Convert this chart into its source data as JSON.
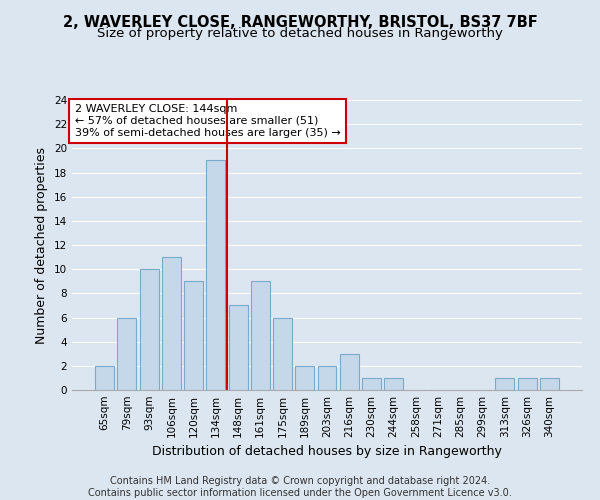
{
  "title_line1": "2, WAVERLEY CLOSE, RANGEWORTHY, BRISTOL, BS37 7BF",
  "title_line2": "Size of property relative to detached houses in Rangeworthy",
  "xlabel": "Distribution of detached houses by size in Rangeworthy",
  "ylabel": "Number of detached properties",
  "categories": [
    "65sqm",
    "79sqm",
    "93sqm",
    "106sqm",
    "120sqm",
    "134sqm",
    "148sqm",
    "161sqm",
    "175sqm",
    "189sqm",
    "203sqm",
    "216sqm",
    "230sqm",
    "244sqm",
    "258sqm",
    "271sqm",
    "285sqm",
    "299sqm",
    "313sqm",
    "326sqm",
    "340sqm"
  ],
  "values": [
    2,
    6,
    10,
    11,
    9,
    19,
    7,
    9,
    6,
    2,
    2,
    3,
    1,
    1,
    0,
    0,
    0,
    0,
    1,
    1,
    1
  ],
  "bar_color": "#c5d8ea",
  "bar_edge_color": "#7aaac8",
  "property_line_x": 5.5,
  "annotation_line1": "2 WAVERLEY CLOSE: 144sqm",
  "annotation_line2": "← 57% of detached houses are smaller (51)",
  "annotation_line3": "39% of semi-detached houses are larger (35) →",
  "annotation_box_color": "white",
  "annotation_box_edge_color": "#cc0000",
  "vline_color": "#cc0000",
  "ylim": [
    0,
    24
  ],
  "yticks": [
    0,
    2,
    4,
    6,
    8,
    10,
    12,
    14,
    16,
    18,
    20,
    22,
    24
  ],
  "footer_line1": "Contains HM Land Registry data © Crown copyright and database right 2024.",
  "footer_line2": "Contains public sector information licensed under the Open Government Licence v3.0.",
  "background_color": "#dce6f0",
  "plot_background_color": "#dce6f0",
  "grid_color": "white",
  "title_fontsize": 10.5,
  "subtitle_fontsize": 9.5,
  "axis_label_fontsize": 9,
  "tick_fontsize": 7.5,
  "annotation_fontsize": 8,
  "footer_fontsize": 7
}
